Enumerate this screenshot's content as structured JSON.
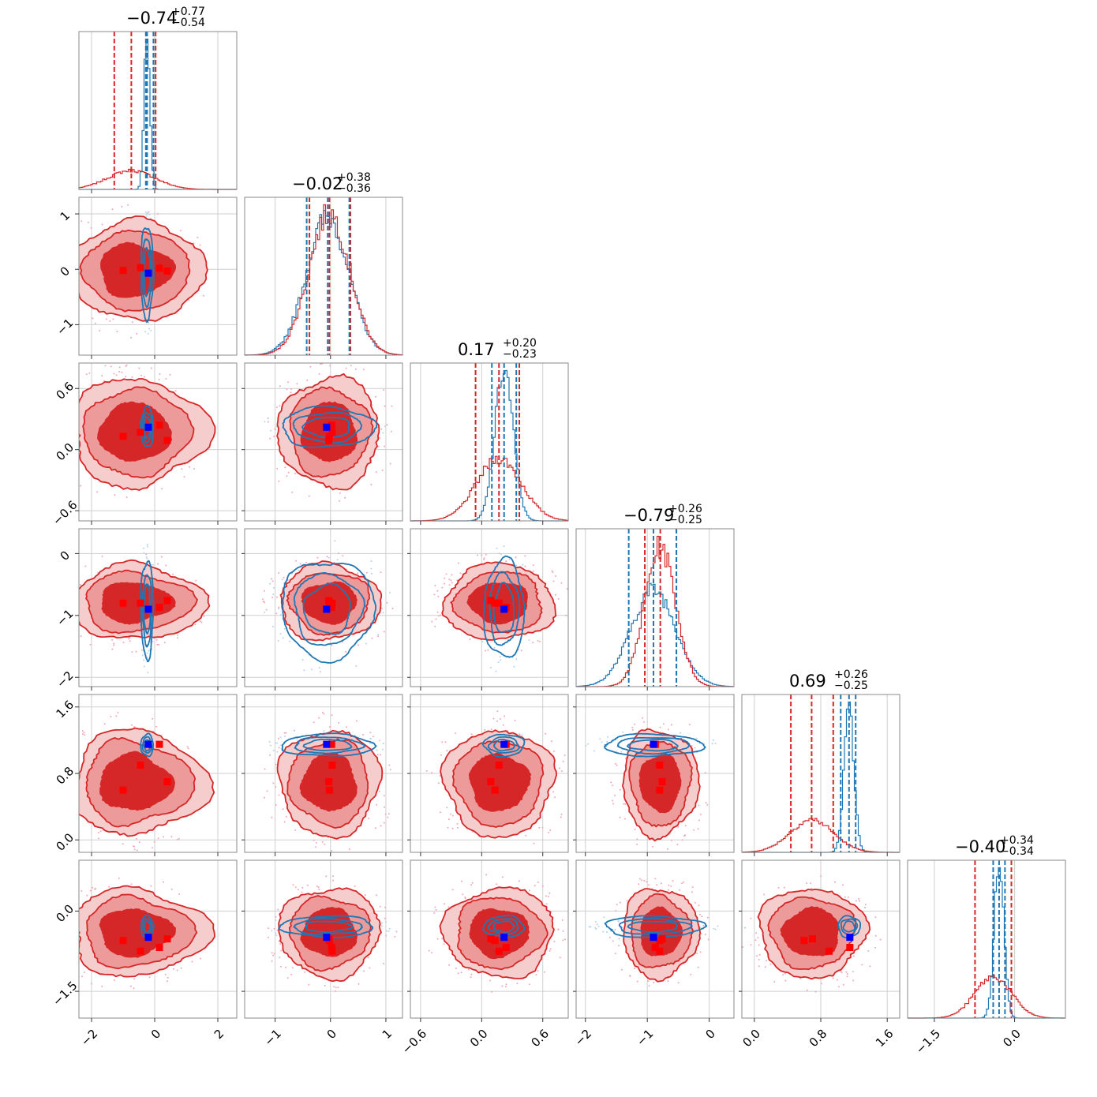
{
  "colors": {
    "red": "#d62728",
    "red_mid": "#ec9a9a",
    "red_light": "#f6cdcd",
    "blue": "#1f77b4",
    "marker_red": "#ff0000",
    "marker_blue": "#0000ff"
  },
  "chart_data": {
    "type": "corner",
    "params": [
      {
        "range": [
          -2.4,
          2.6
        ],
        "ticks": [
          -2,
          0,
          2
        ],
        "tick_labels": [
          "−2",
          "0",
          "2"
        ],
        "red": {
          "mean": -0.74,
          "sd": 0.75,
          "q": [
            -1.28,
            -0.74,
            0.03
          ]
        },
        "blue": {
          "mean": -0.24,
          "sd": 0.09,
          "q": [
            -0.28,
            -0.24,
            -0.04
          ]
        },
        "title": {
          "main": "−0.74",
          "plus": "+0.77",
          "minus": "−0.54"
        }
      },
      {
        "range": [
          -1.55,
          1.3
        ],
        "ticks": [
          -1,
          0,
          1
        ],
        "tick_labels": [
          "−1",
          "0",
          "1"
        ],
        "red": {
          "mean": -0.02,
          "sd": 0.37,
          "q": [
            -0.38,
            -0.02,
            0.36
          ]
        },
        "blue": {
          "mean": -0.05,
          "sd": 0.38,
          "q": [
            -0.43,
            -0.05,
            0.34
          ]
        },
        "title": {
          "main": "−0.02",
          "plus": "+0.38",
          "minus": "−0.36"
        }
      },
      {
        "range": [
          -0.7,
          0.85
        ],
        "ticks": [
          -0.6,
          0.0,
          0.6
        ],
        "tick_labels": [
          "−0.6",
          "0.0",
          "0.6"
        ],
        "red": {
          "mean": 0.17,
          "sd": 0.22,
          "q": [
            -0.06,
            0.17,
            0.37
          ]
        },
        "blue": {
          "mean": 0.22,
          "sd": 0.09,
          "q": [
            0.1,
            0.22,
            0.34
          ]
        },
        "title": {
          "main": "0.17",
          "plus": "+0.20",
          "minus": "−0.23"
        }
      },
      {
        "range": [
          -2.15,
          0.4
        ],
        "ticks": [
          -2,
          -1,
          0
        ],
        "tick_labels": [
          "−2",
          "−1",
          "0"
        ],
        "red": {
          "mean": -0.79,
          "sd": 0.25,
          "q": [
            -1.04,
            -0.79,
            -0.53
          ]
        },
        "blue": {
          "mean": -0.9,
          "sd": 0.36,
          "q": [
            -1.3,
            -0.9,
            -0.53
          ]
        },
        "title": {
          "main": "−0.79",
          "plus": "+0.26",
          "minus": "−0.25"
        }
      },
      {
        "range": [
          -0.15,
          1.75
        ],
        "ticks": [
          0.0,
          0.8,
          1.6
        ],
        "tick_labels": [
          "0.0",
          "0.8",
          "1.6"
        ],
        "red": {
          "mean": 0.69,
          "sd": 0.26,
          "q": [
            0.44,
            0.69,
            0.95
          ]
        },
        "blue": {
          "mean": 1.14,
          "sd": 0.06,
          "q": [
            1.04,
            1.14,
            1.22
          ]
        },
        "title": {
          "main": "0.69",
          "plus": "+0.26",
          "minus": "−0.25"
        }
      },
      {
        "range": [
          -2.0,
          0.95
        ],
        "ticks": [
          -1.5,
          0.0
        ],
        "tick_labels": [
          "−1.5",
          "0.0"
        ],
        "red": {
          "mean": -0.4,
          "sd": 0.34,
          "q": [
            -0.74,
            -0.4,
            -0.06
          ]
        },
        "blue": {
          "mean": -0.29,
          "sd": 0.09,
          "q": [
            -0.4,
            -0.29,
            -0.18
          ]
        },
        "title": {
          "main": "−0.40",
          "plus": "+0.34",
          "minus": "−0.34"
        }
      }
    ],
    "red_markers": [
      [
        -1.0,
        -0.02,
        0.13,
        -0.8,
        0.6,
        -0.55
      ],
      [
        -0.45,
        0.03,
        0.17,
        -0.8,
        0.9,
        -0.75
      ],
      [
        0.15,
        0.02,
        0.24,
        -0.87,
        1.15,
        -0.68
      ],
      [
        0.4,
        -0.03,
        0.09,
        -0.76,
        0.7,
        -0.52
      ]
    ],
    "blue_marker": [
      -0.2,
      -0.07,
      0.22,
      -0.9,
      1.15,
      -0.49
    ]
  }
}
